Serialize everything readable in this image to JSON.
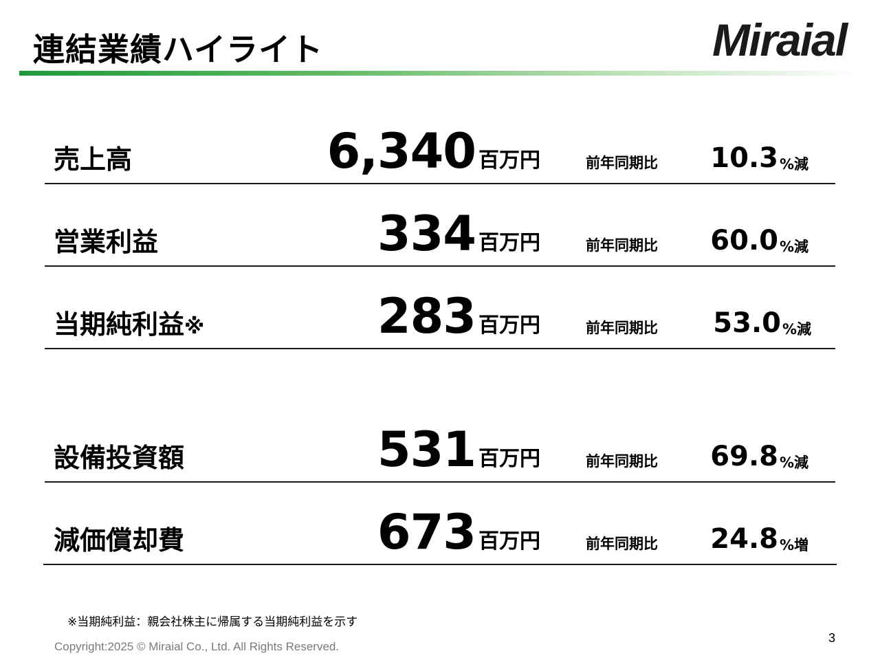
{
  "header": {
    "title": "連結業績ハイライト",
    "logo_text": "Miraial"
  },
  "metrics": [
    {
      "label": "売上高",
      "note": "",
      "value": "6,340",
      "unit": "百万円",
      "yoy_label": "前年同期比",
      "change": "10.3",
      "change_suffix": "%減"
    },
    {
      "label": "営業利益",
      "note": "",
      "value": "334",
      "unit": "百万円",
      "yoy_label": "前年同期比",
      "change": "60.0",
      "change_suffix": "%減"
    },
    {
      "label": "当期純利益",
      "note": "※",
      "value": "283",
      "unit": "百万円",
      "yoy_label": "前年同期比",
      "change": "53.0",
      "change_suffix": "%減"
    },
    {
      "label": "設備投資額",
      "note": "",
      "value": "531",
      "unit": "百万円",
      "yoy_label": "前年同期比",
      "change": "69.8",
      "change_suffix": "%減"
    },
    {
      "label": "減価償却費",
      "note": "",
      "value": "673",
      "unit": "百万円",
      "yoy_label": "前年同期比",
      "change": "24.8",
      "change_suffix": "%増"
    }
  ],
  "footer": {
    "footnote": "※当期純利益：親会社株主に帰属する当期純利益を示す",
    "copyright": "Copyright:2025 © Miraial Co., Ltd. All Rights Reserved.",
    "page_number": "3"
  }
}
